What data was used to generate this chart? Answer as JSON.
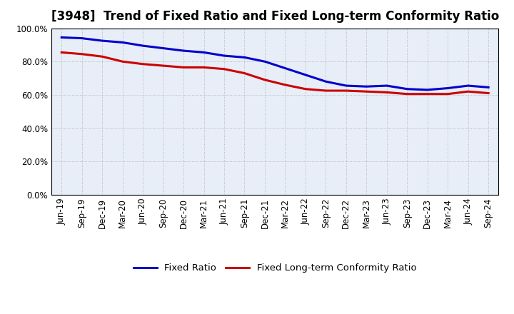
{
  "title": "[3948]  Trend of Fixed Ratio and Fixed Long-term Conformity Ratio",
  "x_labels": [
    "Jun-19",
    "Sep-19",
    "Dec-19",
    "Mar-20",
    "Jun-20",
    "Sep-20",
    "Dec-20",
    "Mar-21",
    "Jun-21",
    "Sep-21",
    "Dec-21",
    "Mar-22",
    "Jun-22",
    "Sep-22",
    "Dec-22",
    "Mar-23",
    "Jun-23",
    "Sep-23",
    "Dec-23",
    "Mar-24",
    "Jun-24",
    "Sep-24"
  ],
  "fixed_ratio": [
    94.5,
    94.0,
    92.5,
    91.5,
    89.5,
    88.0,
    86.5,
    85.5,
    83.5,
    82.5,
    80.0,
    76.0,
    72.0,
    68.0,
    65.5,
    65.0,
    65.5,
    63.5,
    63.0,
    64.0,
    65.5,
    64.5
  ],
  "fixed_lt_ratio": [
    85.5,
    84.5,
    83.0,
    80.0,
    78.5,
    77.5,
    76.5,
    76.5,
    75.5,
    73.0,
    69.0,
    66.0,
    63.5,
    62.5,
    62.5,
    62.0,
    61.5,
    60.5,
    60.5,
    60.5,
    62.0,
    61.0
  ],
  "fixed_ratio_color": "#0000CC",
  "fixed_lt_ratio_color": "#CC0000",
  "ylim": [
    0,
    100
  ],
  "ytick_values": [
    0,
    20,
    40,
    60,
    80,
    100
  ],
  "plot_bg_color": "#E8EEF8",
  "outer_bg_color": "#FFFFFF",
  "grid_color": "#AAAAAA",
  "legend_fixed_ratio": "Fixed Ratio",
  "legend_fixed_lt_ratio": "Fixed Long-term Conformity Ratio",
  "title_fontsize": 12,
  "tick_fontsize": 8.5,
  "legend_fontsize": 9.5
}
